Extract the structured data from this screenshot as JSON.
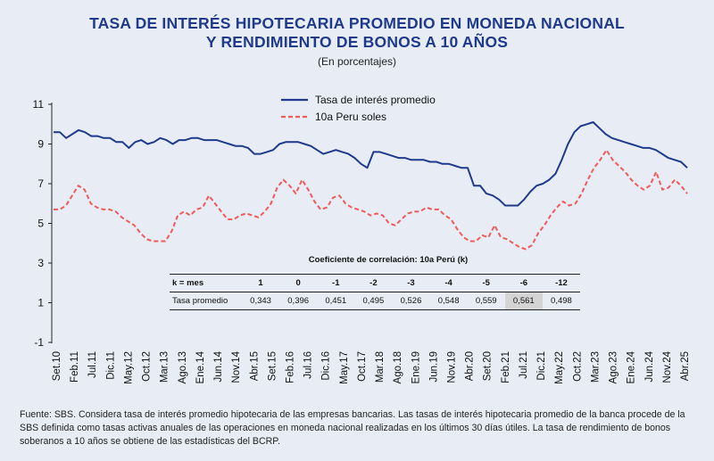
{
  "title_line1": "TASA DE INTERÉS HIPOTECARIA PROMEDIO EN MONEDA NACIONAL",
  "title_line2": "Y RENDIMIENTO DE BONOS A 10 AÑOS",
  "subtitle": "(En porcentajes)",
  "source": "Fuente: SBS. Considera tasa de interés promedio hipotecaria de las empresas bancarias. Las tasas de interés hipotecaria promedio de la banca procede de la SBS definida como tasas activas anuales de las operaciones en moneda nacional realizadas en los últimos 30 días útiles. La tasa de rendimiento de bonos soberanos a 10 años se obtiene de las estadísticas del BCRP.",
  "colors": {
    "mortgage": "#1f3a8a",
    "bond": "#f05a5a",
    "title": "#1f3a8a"
  },
  "correlation_table": {
    "title": "Coeficiente de correlación: 10a Perú (k)",
    "header_label": "k = mes",
    "lags": [
      "1",
      "0",
      "-1",
      "-2",
      "-3",
      "-4",
      "-5",
      "-6",
      "-12"
    ],
    "row_label": "Tasa promedio",
    "values": [
      "0,343",
      "0,396",
      "0,451",
      "0,495",
      "0,526",
      "0,548",
      "0,559",
      "0,561",
      "0,498"
    ],
    "highlight_index": 7
  },
  "chart_data": {
    "type": "line",
    "ylim": [
      -1,
      11
    ],
    "yticks": [
      -1,
      1,
      3,
      5,
      7,
      9,
      11
    ],
    "grid": false,
    "legend_position": "top-center",
    "x_tick_labels": [
      "Set.10",
      "Feb.11",
      "Jul.11",
      "Dic.11",
      "May.12",
      "Oct.12",
      "Mar.13",
      "Ago.13",
      "Ene.14",
      "Jun.14",
      "Nov.14",
      "Abr.15",
      "Set.15",
      "Feb.16",
      "Jul.16",
      "Dic.16",
      "May.17",
      "Oct.17",
      "Mar.18",
      "Ago.18",
      "Ene.19",
      "Jun.19",
      "Nov.19",
      "Abr.20",
      "Set.20",
      "Feb.21",
      "Jul.21",
      "Dic.21",
      "May.22",
      "Oct.22",
      "Mar.23",
      "Ago.23",
      "Ene.24",
      "Jun.24",
      "Nov.24",
      "Abr.25"
    ],
    "series": [
      {
        "name": "Tasa de interés promedio",
        "style": "solid",
        "values": [
          9.6,
          9.6,
          9.3,
          9.5,
          9.7,
          9.6,
          9.4,
          9.4,
          9.3,
          9.3,
          9.1,
          9.1,
          8.8,
          9.1,
          9.2,
          9.0,
          9.1,
          9.3,
          9.2,
          9.0,
          9.2,
          9.2,
          9.3,
          9.3,
          9.2,
          9.2,
          9.2,
          9.1,
          9.0,
          8.9,
          8.9,
          8.8,
          8.5,
          8.5,
          8.6,
          8.7,
          9.0,
          9.1,
          9.1,
          9.1,
          9.0,
          8.9,
          8.7,
          8.5,
          8.6,
          8.7,
          8.6,
          8.5,
          8.3,
          8.0,
          7.8,
          8.6,
          8.6,
          8.5,
          8.4,
          8.3,
          8.3,
          8.2,
          8.2,
          8.2,
          8.1,
          8.1,
          8.0,
          8.0,
          7.9,
          7.8,
          7.8,
          6.9,
          6.9,
          6.5,
          6.4,
          6.2,
          5.9,
          5.9,
          5.9,
          6.2,
          6.6,
          6.9,
          7.0,
          7.2,
          7.5,
          8.2,
          9.0,
          9.6,
          9.9,
          10.0,
          10.1,
          9.8,
          9.5,
          9.3,
          9.2,
          9.1,
          9.0,
          8.9,
          8.8,
          8.8,
          8.7,
          8.5,
          8.3,
          8.2,
          8.1,
          7.8
        ]
      },
      {
        "name": "10a Peru soles",
        "style": "dashed",
        "values": [
          5.7,
          5.7,
          5.9,
          6.4,
          6.9,
          6.7,
          6.0,
          5.8,
          5.7,
          5.7,
          5.6,
          5.3,
          5.1,
          4.9,
          4.5,
          4.2,
          4.1,
          4.1,
          4.1,
          4.6,
          5.4,
          5.6,
          5.4,
          5.7,
          5.8,
          6.4,
          6.0,
          5.6,
          5.2,
          5.2,
          5.4,
          5.5,
          5.4,
          5.3,
          5.6,
          6.0,
          6.8,
          7.2,
          6.9,
          6.5,
          7.2,
          6.7,
          6.1,
          5.7,
          5.8,
          6.3,
          6.4,
          6.0,
          5.8,
          5.7,
          5.6,
          5.4,
          5.5,
          5.4,
          5.0,
          4.9,
          5.2,
          5.5,
          5.6,
          5.6,
          5.8,
          5.7,
          5.7,
          5.4,
          5.2,
          4.7,
          4.3,
          4.1,
          4.1,
          4.4,
          4.3,
          4.9,
          4.3,
          4.2,
          4.0,
          3.8,
          3.7,
          3.9,
          4.5,
          4.9,
          5.4,
          5.8,
          6.1,
          5.9,
          6.0,
          6.5,
          7.2,
          7.8,
          8.2,
          8.7,
          8.2,
          7.9,
          7.6,
          7.2,
          6.9,
          6.7,
          6.9,
          7.6,
          6.7,
          6.8,
          7.2,
          6.9,
          6.5
        ]
      }
    ]
  }
}
